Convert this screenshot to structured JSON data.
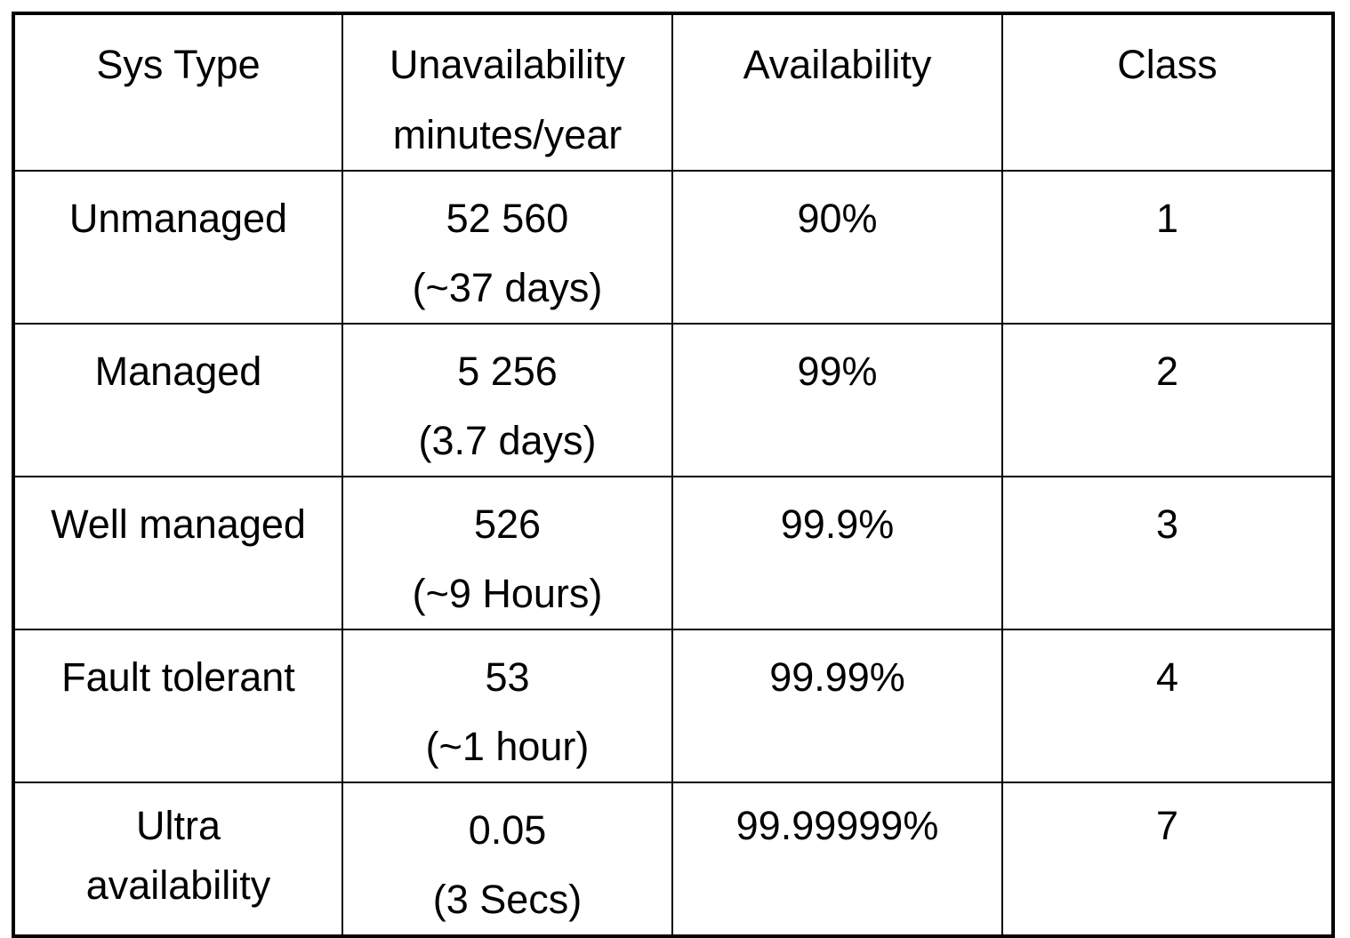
{
  "table": {
    "headers": {
      "sys_type": "Sys Type",
      "unavailability_line1": "Unavailability",
      "unavailability_line2": "minutes/year",
      "availability": "Availability",
      "class": "Class"
    },
    "rows": [
      {
        "sys_type": [
          "Unmanaged"
        ],
        "unavailability": "52 560",
        "unavailability_note": "(~37 days)",
        "availability": "90%",
        "class": "1"
      },
      {
        "sys_type": [
          "Managed"
        ],
        "unavailability": "5 256",
        "unavailability_note": "(3.7 days)",
        "availability": "99%",
        "class": "2"
      },
      {
        "sys_type": [
          "Well managed"
        ],
        "unavailability": "526",
        "unavailability_note": "(~9 Hours)",
        "availability": "99.9%",
        "class": "3"
      },
      {
        "sys_type": [
          "Fault tolerant"
        ],
        "unavailability": "53",
        "unavailability_note": "(~1 hour)",
        "availability": "99.99%",
        "class": "4"
      },
      {
        "sys_type": [
          "Ultra",
          "availability"
        ],
        "unavailability": "0.05",
        "unavailability_note": "(3 Secs)",
        "availability": "99.99999%",
        "class": "7"
      }
    ]
  }
}
